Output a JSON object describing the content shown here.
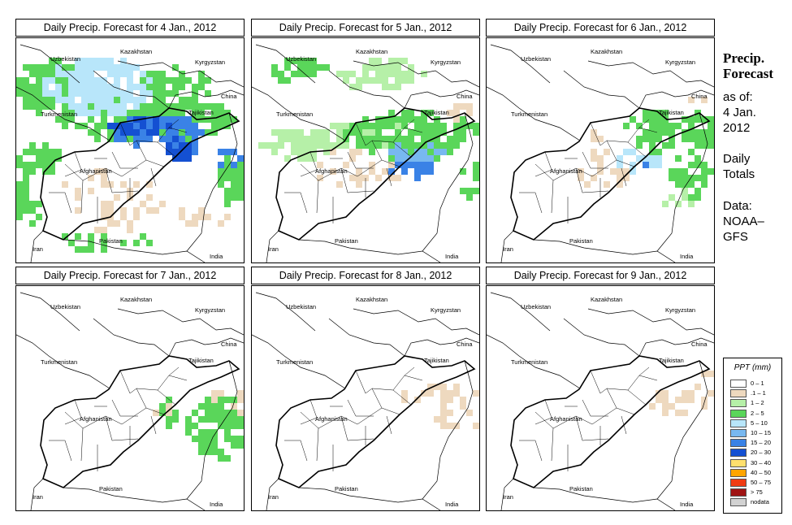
{
  "panels": [
    {
      "title": "Daily Precip. Forecast for  4 Jan., 2012"
    },
    {
      "title": "Daily Precip. Forecast for  5 Jan., 2012"
    },
    {
      "title": "Daily Precip. Forecast for  6 Jan., 2012"
    },
    {
      "title": "Daily Precip. Forecast for  7 Jan., 2012"
    },
    {
      "title": "Daily Precip. Forecast for  8 Jan., 2012"
    },
    {
      "title": "Daily Precip. Forecast for  9 Jan., 2012"
    }
  ],
  "map_labels": {
    "kazakhstan": "Kazakhstan",
    "uzbekistan": "Uzbekistan",
    "kyrgyzstan": "Kyrgyzstan",
    "china": "China",
    "turkmenistan": "Turkmenistan",
    "tajikistan": "Tajikistan",
    "afghanistan": "Afghanistan",
    "pakistan": "Pakistan",
    "iran": "Iran",
    "india": "India"
  },
  "side": {
    "title_line1": "Precip.",
    "title_line2": "Forecast",
    "asof_line1": "as of:",
    "asof_line2": "4 Jan.",
    "asof_line3": "2012",
    "totals_line1": "Daily",
    "totals_line2": "Totals",
    "data_line1": "Data:",
    "data_line2": "NOAA–",
    "data_line3": "GFS"
  },
  "legend": {
    "title": "PPT (mm)",
    "items": [
      {
        "label": "0 – 1",
        "color": "#ffffff"
      },
      {
        "label": ".1 – 1",
        "color": "#eed9bf"
      },
      {
        "label": "1 – 2",
        "color": "#b6f0a8"
      },
      {
        "label": "2 – 5",
        "color": "#5ad65a"
      },
      {
        "label": "5 – 10",
        "color": "#b8e6fa"
      },
      {
        "label": "10 – 15",
        "color": "#78b8f0"
      },
      {
        "label": "15 – 20",
        "color": "#3a82e6"
      },
      {
        "label": "20 – 30",
        "color": "#1450d2"
      },
      {
        "label": "30 – 40",
        "color": "#ffe06e"
      },
      {
        "label": "40 – 50",
        "color": "#ffa500"
      },
      {
        "label": "50 – 75",
        "color": "#f03c14"
      },
      {
        "label": "> 75",
        "color": "#a01414"
      },
      {
        "label": "nodata",
        "color": "#d2d2d2"
      }
    ]
  }
}
